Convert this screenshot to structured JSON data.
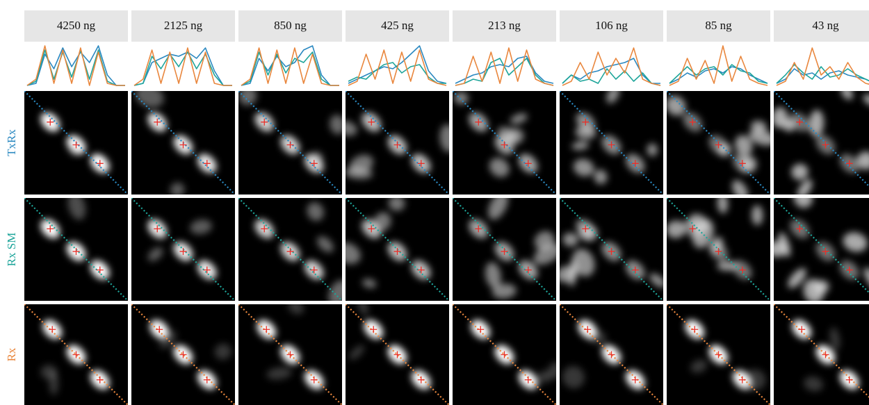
{
  "rows": [
    {
      "label": "TxRx",
      "color": "#2a88c0"
    },
    {
      "label": "Rx SM",
      "color": "#1ea59a"
    },
    {
      "label": "Rx",
      "color": "#e9873e"
    }
  ],
  "columns": [
    {
      "label": "4250 ng",
      "profiles": [
        [
          0.05,
          0.1,
          0.8,
          0.45,
          0.95,
          0.5,
          0.85,
          0.6,
          1.0,
          0.3,
          0.05,
          0.05
        ],
        [
          0.05,
          0.15,
          0.9,
          0.2,
          0.85,
          0.25,
          0.9,
          0.2,
          0.9,
          0.15,
          0.05,
          0.05
        ],
        [
          0.05,
          0.2,
          1.0,
          0.1,
          0.9,
          0.1,
          0.95,
          0.05,
          0.85,
          0.1,
          0.05,
          0.05
        ]
      ]
    },
    {
      "label": "2125 ng",
      "profiles": [
        [
          0.05,
          0.1,
          0.6,
          0.7,
          0.8,
          0.75,
          0.85,
          0.7,
          0.95,
          0.4,
          0.05,
          0.05
        ],
        [
          0.05,
          0.1,
          0.75,
          0.45,
          0.8,
          0.5,
          0.85,
          0.45,
          0.8,
          0.3,
          0.05,
          0.05
        ],
        [
          0.05,
          0.2,
          0.9,
          0.1,
          0.85,
          0.1,
          0.95,
          0.1,
          0.85,
          0.1,
          0.05,
          0.05
        ]
      ]
    },
    {
      "label": "850 ng",
      "profiles": [
        [
          0.05,
          0.1,
          0.7,
          0.4,
          0.75,
          0.5,
          0.6,
          0.9,
          1.0,
          0.3,
          0.05,
          0.05
        ],
        [
          0.05,
          0.15,
          0.85,
          0.3,
          0.8,
          0.35,
          0.7,
          0.6,
          0.85,
          0.2,
          0.05,
          0.05
        ],
        [
          0.05,
          0.2,
          0.95,
          0.1,
          0.9,
          0.1,
          0.95,
          0.1,
          0.8,
          0.1,
          0.05,
          0.05
        ]
      ]
    },
    {
      "label": "425 ng",
      "profiles": [
        [
          0.1,
          0.2,
          0.3,
          0.4,
          0.5,
          0.45,
          0.6,
          0.8,
          1.0,
          0.4,
          0.15,
          0.1
        ],
        [
          0.15,
          0.25,
          0.2,
          0.4,
          0.55,
          0.6,
          0.35,
          0.5,
          0.55,
          0.25,
          0.1,
          0.1
        ],
        [
          0.05,
          0.15,
          0.8,
          0.2,
          0.9,
          0.1,
          0.85,
          0.15,
          0.9,
          0.2,
          0.1,
          0.05
        ]
      ]
    },
    {
      "label": "213 ng",
      "profiles": [
        [
          0.1,
          0.2,
          0.3,
          0.35,
          0.5,
          0.55,
          0.5,
          0.7,
          0.75,
          0.35,
          0.15,
          0.1
        ],
        [
          0.05,
          0.1,
          0.2,
          0.15,
          0.6,
          0.7,
          0.3,
          0.5,
          0.7,
          0.3,
          0.1,
          0.05
        ],
        [
          0.05,
          0.1,
          0.75,
          0.15,
          0.85,
          0.1,
          0.95,
          0.15,
          0.9,
          0.2,
          0.1,
          0.05
        ]
      ]
    },
    {
      "label": "106 ng",
      "profiles": [
        [
          0.1,
          0.3,
          0.2,
          0.35,
          0.4,
          0.5,
          0.55,
          0.6,
          0.7,
          0.3,
          0.1,
          0.1
        ],
        [
          0.1,
          0.3,
          0.15,
          0.2,
          0.1,
          0.45,
          0.2,
          0.4,
          0.15,
          0.35,
          0.1,
          0.05
        ],
        [
          0.05,
          0.15,
          0.6,
          0.2,
          0.85,
          0.3,
          0.7,
          0.35,
          0.95,
          0.2,
          0.1,
          0.05
        ]
      ]
    },
    {
      "label": "85 ng",
      "profiles": [
        [
          0.1,
          0.2,
          0.35,
          0.25,
          0.4,
          0.45,
          0.35,
          0.5,
          0.45,
          0.3,
          0.2,
          0.1
        ],
        [
          0.1,
          0.3,
          0.5,
          0.3,
          0.45,
          0.5,
          0.3,
          0.55,
          0.4,
          0.35,
          0.15,
          0.1
        ],
        [
          0.05,
          0.15,
          0.7,
          0.2,
          0.65,
          0.1,
          1.0,
          0.15,
          0.75,
          0.2,
          0.1,
          0.05
        ]
      ]
    },
    {
      "label": "43 ng",
      "profiles": [
        [
          0.1,
          0.2,
          0.45,
          0.3,
          0.35,
          0.2,
          0.35,
          0.4,
          0.3,
          0.25,
          0.2,
          0.1
        ],
        [
          0.1,
          0.3,
          0.55,
          0.35,
          0.2,
          0.5,
          0.25,
          0.3,
          0.45,
          0.3,
          0.2,
          0.1
        ],
        [
          0.05,
          0.15,
          0.6,
          0.2,
          0.95,
          0.3,
          0.5,
          0.2,
          0.6,
          0.25,
          0.1,
          0.05
        ]
      ]
    }
  ]
}
